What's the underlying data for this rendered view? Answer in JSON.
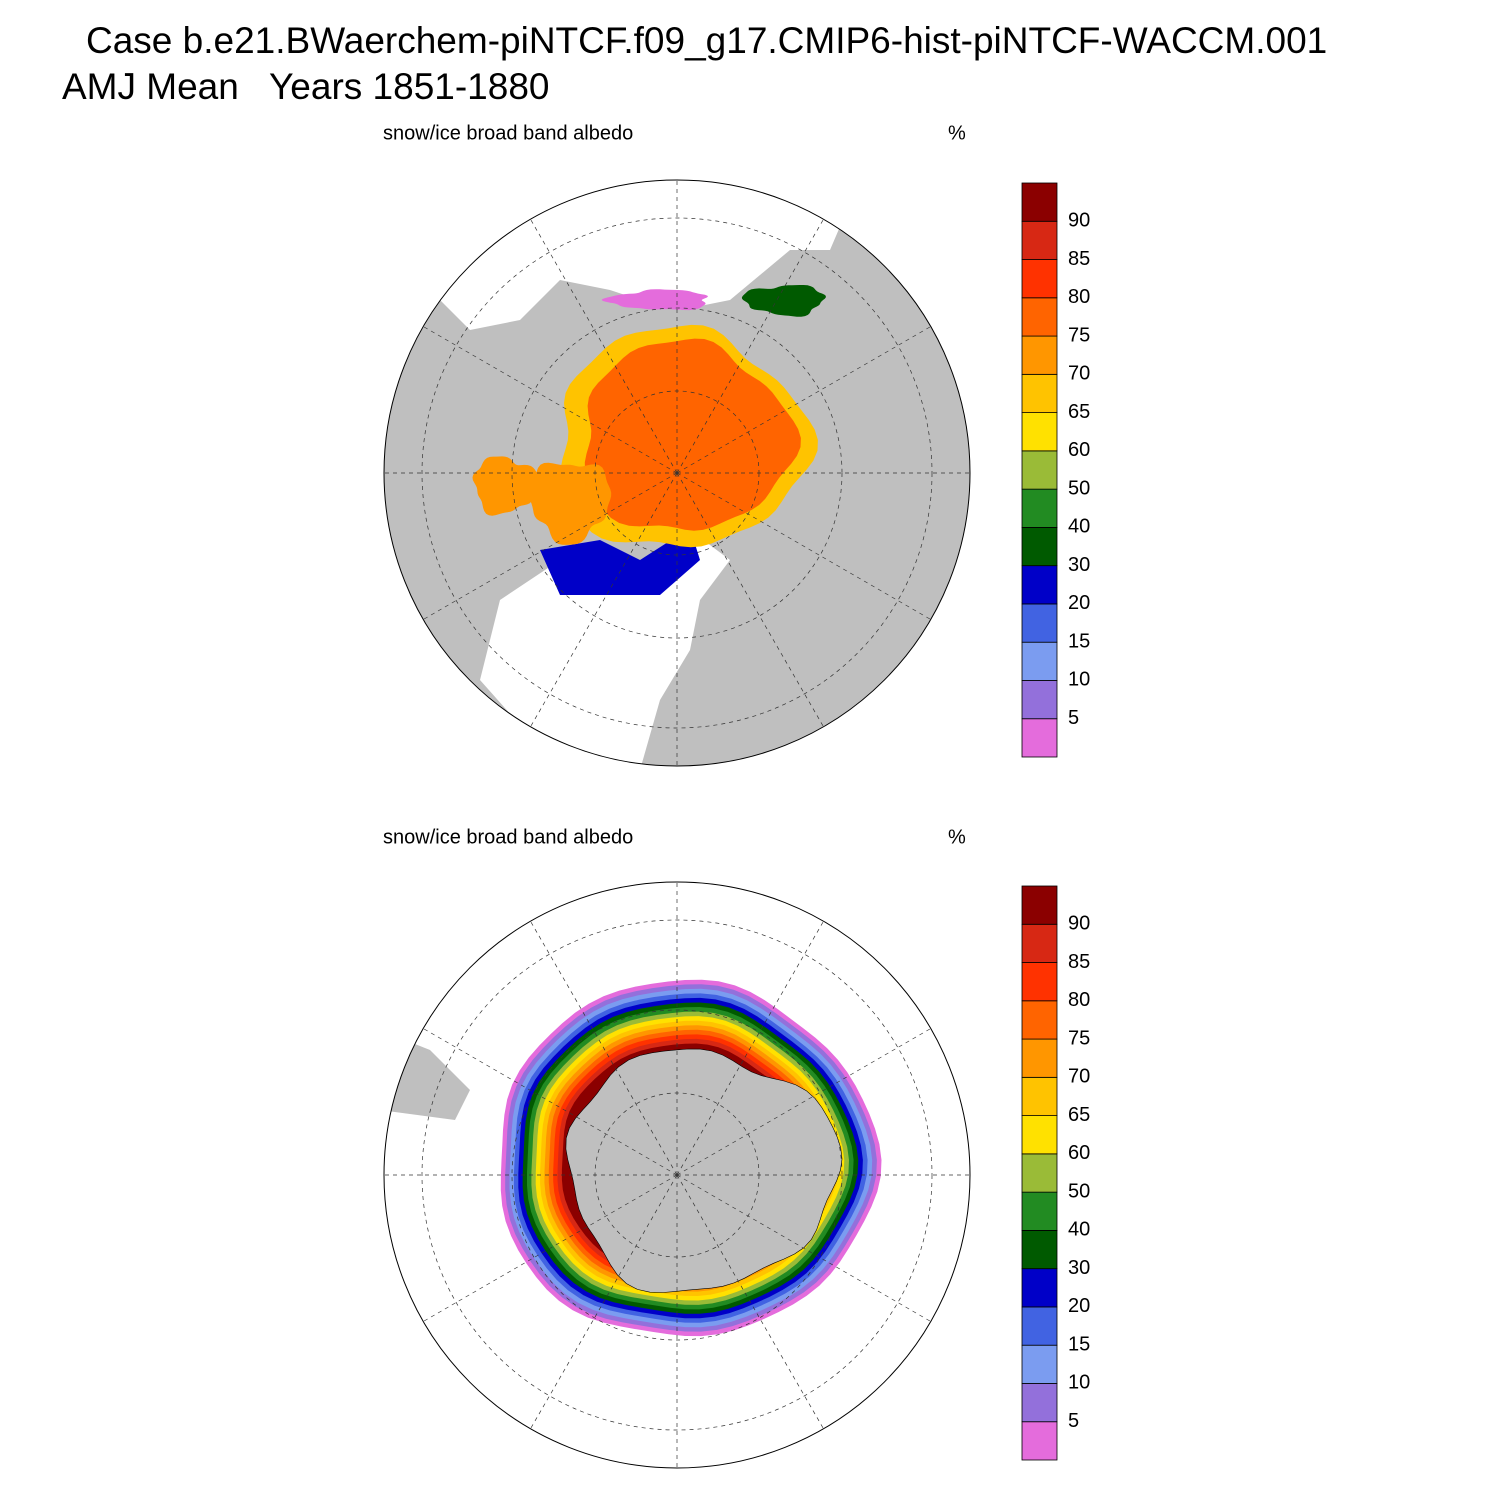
{
  "header": {
    "title": "Case b.e21.BWaerchem-piNTCF.f09_g17.CMIP6-hist-piNTCF-WACCM.001",
    "subtitle": "AMJ Mean   Years 1851-1880"
  },
  "panels": [
    {
      "title": "snow/ice broad band albedo",
      "units": "%",
      "hemisphere": "north"
    },
    {
      "title": "snow/ice broad band albedo",
      "units": "%",
      "hemisphere": "south"
    }
  ],
  "colorbar": {
    "levels": [
      5,
      10,
      15,
      20,
      30,
      40,
      50,
      60,
      65,
      70,
      75,
      80,
      85,
      90
    ],
    "colors": [
      "#e46cdc",
      "#9370db",
      "#7b9cf0",
      "#4163e2",
      "#0000c8",
      "#005a00",
      "#228b22",
      "#9abb37",
      "#ffe100",
      "#ffc300",
      "#ff9600",
      "#ff6400",
      "#ff3200",
      "#d72814",
      "#8b0000"
    ]
  }
}
